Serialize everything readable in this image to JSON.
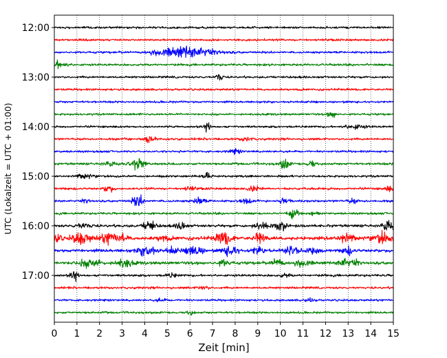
{
  "chart_data": {
    "type": "line",
    "title": "",
    "xlabel": "Zeit  [min]",
    "ylabel": "UTC (Lokalzeit = UTC + 01:00)",
    "xlim": [
      0,
      15
    ],
    "x_ticks": [
      "0",
      "1",
      "2",
      "3",
      "4",
      "5",
      "6",
      "7",
      "8",
      "9",
      "10",
      "11",
      "12",
      "13",
      "14",
      "15"
    ],
    "y_ticks": [
      {
        "label": "12:00",
        "trace": 0
      },
      {
        "label": "13:00",
        "trace": 4
      },
      {
        "label": "14:00",
        "trace": 8
      },
      {
        "label": "15:00",
        "trace": 12
      },
      {
        "label": "16:00",
        "trace": 16
      },
      {
        "label": "17:00",
        "trace": 20
      }
    ],
    "grid": "vertical dotted at each minute",
    "trace_interval_minutes": 15,
    "start_time": "12:00",
    "colors": [
      "#000000",
      "#ff0000",
      "#0000ff",
      "#008000"
    ],
    "traces": [
      {
        "start": "12:00",
        "color": "#000000",
        "noise": 0.2,
        "events": []
      },
      {
        "start": "12:15",
        "color": "#ff0000",
        "noise": 0.2,
        "events": []
      },
      {
        "start": "12:30",
        "color": "#0000ff",
        "noise": 0.22,
        "events": [
          [
            5.6,
            3.5,
            1.1
          ],
          [
            6.6,
            1.6,
            0.9
          ]
        ]
      },
      {
        "start": "12:45",
        "color": "#008000",
        "noise": 0.22,
        "events": [
          [
            0.2,
            2.8,
            0.3
          ]
        ]
      },
      {
        "start": "13:00",
        "color": "#000000",
        "noise": 0.2,
        "events": [
          [
            7.3,
            3.6,
            0.1
          ]
        ]
      },
      {
        "start": "13:15",
        "color": "#ff0000",
        "noise": 0.2,
        "events": []
      },
      {
        "start": "13:30",
        "color": "#0000ff",
        "noise": 0.2,
        "events": []
      },
      {
        "start": "13:45",
        "color": "#008000",
        "noise": 0.2,
        "events": [
          [
            12.3,
            2.5,
            0.15
          ]
        ]
      },
      {
        "start": "14:00",
        "color": "#000000",
        "noise": 0.2,
        "events": [
          [
            6.8,
            3.8,
            0.1
          ],
          [
            13.3,
            1.6,
            0.4
          ]
        ]
      },
      {
        "start": "14:15",
        "color": "#ff0000",
        "noise": 0.22,
        "events": [
          [
            4.2,
            2.2,
            0.2
          ],
          [
            8.5,
            1.6,
            0.2
          ]
        ]
      },
      {
        "start": "14:30",
        "color": "#0000ff",
        "noise": 0.2,
        "events": [
          [
            8.0,
            1.5,
            0.2
          ]
        ]
      },
      {
        "start": "14:45",
        "color": "#008000",
        "noise": 0.25,
        "events": [
          [
            3.7,
            4.0,
            0.25
          ],
          [
            10.2,
            4.2,
            0.15
          ],
          [
            11.4,
            2.8,
            0.15
          ],
          [
            2.5,
            1.4,
            0.3
          ]
        ]
      },
      {
        "start": "15:00",
        "color": "#000000",
        "noise": 0.22,
        "events": [
          [
            6.8,
            2.2,
            0.15
          ],
          [
            1.3,
            1.6,
            0.3
          ]
        ]
      },
      {
        "start": "15:15",
        "color": "#ff0000",
        "noise": 0.25,
        "events": [
          [
            2.4,
            2.8,
            0.15
          ],
          [
            8.8,
            1.8,
            0.2
          ],
          [
            14.8,
            1.8,
            0.15
          ],
          [
            6.0,
            1.4,
            0.2
          ]
        ]
      },
      {
        "start": "15:30",
        "color": "#0000ff",
        "noise": 0.25,
        "events": [
          [
            3.7,
            4.2,
            0.2
          ],
          [
            6.4,
            2.6,
            0.2
          ],
          [
            8.5,
            2.0,
            0.2
          ],
          [
            10.2,
            3.2,
            0.15
          ],
          [
            1.4,
            1.8,
            0.15
          ],
          [
            13.2,
            1.8,
            0.15
          ]
        ]
      },
      {
        "start": "15:45",
        "color": "#008000",
        "noise": 0.22,
        "events": [
          [
            10.6,
            3.6,
            0.2
          ],
          [
            11.5,
            1.6,
            0.2
          ]
        ]
      },
      {
        "start": "16:00",
        "color": "#000000",
        "noise": 0.35,
        "events": [
          [
            4.2,
            4.5,
            0.2
          ],
          [
            5.6,
            3.2,
            0.15
          ],
          [
            9.2,
            3.0,
            0.25
          ],
          [
            10.0,
            3.2,
            0.2
          ],
          [
            14.8,
            4.5,
            0.2
          ],
          [
            1.3,
            1.8,
            0.3
          ]
        ]
      },
      {
        "start": "16:15",
        "color": "#ff0000",
        "noise": 0.55,
        "events": [
          [
            1.2,
            4.6,
            0.35
          ],
          [
            2.4,
            4.0,
            0.3
          ],
          [
            3.0,
            3.0,
            0.2
          ],
          [
            7.5,
            4.5,
            0.3
          ],
          [
            9.1,
            4.2,
            0.2
          ],
          [
            12.9,
            3.8,
            0.3
          ],
          [
            14.5,
            4.0,
            0.3
          ],
          [
            4.8,
            2.0,
            0.2
          ],
          [
            0.1,
            3.0,
            0.15
          ]
        ]
      },
      {
        "start": "16:30",
        "color": "#0000ff",
        "noise": 0.45,
        "events": [
          [
            4.1,
            4.5,
            0.3
          ],
          [
            6.2,
            4.2,
            0.3
          ],
          [
            7.8,
            3.6,
            0.3
          ],
          [
            9.0,
            3.2,
            0.2
          ],
          [
            10.5,
            3.8,
            0.25
          ],
          [
            13.0,
            2.6,
            0.2
          ],
          [
            5.2,
            2.2,
            0.2
          ],
          [
            11.5,
            2.4,
            0.2
          ]
        ]
      },
      {
        "start": "16:45",
        "color": "#008000",
        "noise": 0.45,
        "events": [
          [
            1.6,
            3.2,
            0.4
          ],
          [
            3.1,
            3.0,
            0.3
          ],
          [
            9.9,
            3.6,
            0.2
          ],
          [
            12.8,
            3.4,
            0.2
          ],
          [
            7.5,
            2.2,
            0.2
          ],
          [
            11.0,
            2.0,
            0.3
          ],
          [
            13.3,
            2.4,
            0.2
          ]
        ]
      },
      {
        "start": "17:00",
        "color": "#000000",
        "noise": 0.25,
        "events": [
          [
            0.9,
            3.2,
            0.15
          ],
          [
            5.2,
            1.4,
            0.2
          ],
          [
            10.2,
            1.2,
            0.2
          ]
        ]
      },
      {
        "start": "17:15",
        "color": "#ff0000",
        "noise": 0.22,
        "events": [
          [
            6.6,
            1.4,
            0.2
          ]
        ]
      },
      {
        "start": "17:30",
        "color": "#0000ff",
        "noise": 0.2,
        "events": [
          [
            11.3,
            1.4,
            0.15
          ],
          [
            4.7,
            1.2,
            0.15
          ]
        ]
      },
      {
        "start": "17:45",
        "color": "#008000",
        "noise": 0.2,
        "events": [
          [
            6.0,
            1.4,
            0.15
          ]
        ]
      }
    ]
  }
}
